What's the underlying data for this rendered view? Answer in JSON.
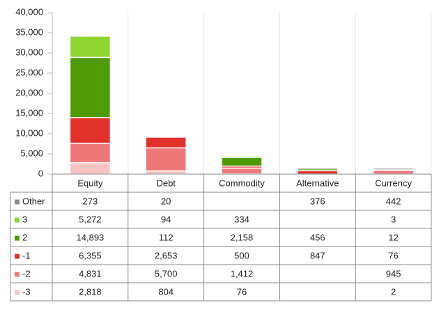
{
  "chart_data": {
    "type": "stacked_bar",
    "categories": [
      "Equity",
      "Debt",
      "Commodity",
      "Alternative",
      "Currency"
    ],
    "series": [
      {
        "name": "-3",
        "color": "#f7c3c3",
        "values": [
          2818,
          804,
          76,
          null,
          2
        ],
        "value_labels": [
          "2,818",
          "804",
          "76",
          null,
          "2"
        ]
      },
      {
        "name": "-2",
        "color": "#ee7777",
        "values": [
          4831,
          5700,
          1412,
          null,
          945
        ],
        "value_labels": [
          "4,831",
          "5,700",
          "1,412",
          null,
          "945"
        ]
      },
      {
        "name": "-1",
        "color": "#e2302b",
        "values": [
          6355,
          2653,
          500,
          847,
          76
        ],
        "value_labels": [
          "6,355",
          "2,653",
          "500",
          "847",
          "76"
        ]
      },
      {
        "name": "2",
        "color": "#4f9b05",
        "values": [
          14893,
          112,
          2158,
          456,
          12
        ],
        "value_labels": [
          "14,893",
          "112",
          "2,158",
          "456",
          "12"
        ]
      },
      {
        "name": "3",
        "color": "#8ed630",
        "values": [
          5272,
          94,
          334,
          null,
          3
        ],
        "value_labels": [
          "5,272",
          "94",
          "334",
          null,
          "3"
        ]
      },
      {
        "name": "Other",
        "color": "#8c8c8c",
        "values": [
          273,
          20,
          null,
          376,
          442
        ],
        "value_labels": [
          "273",
          "20",
          null,
          "376",
          "442"
        ]
      }
    ],
    "ylim": [
      0,
      40000
    ],
    "yticks": [
      0,
      {
        "value": 5000,
        "label": "5,000"
      },
      {
        "value": 10000,
        "label": "10,000"
      },
      {
        "value": 15000,
        "label": "15,000"
      },
      {
        "value": 20000,
        "label": "20,000"
      },
      {
        "value": 25000,
        "label": "25,000"
      },
      {
        "value": 30000,
        "label": "30,000"
      },
      {
        "value": 35000,
        "label": "35,000"
      },
      {
        "value": 40000,
        "label": "40,000"
      }
    ]
  }
}
